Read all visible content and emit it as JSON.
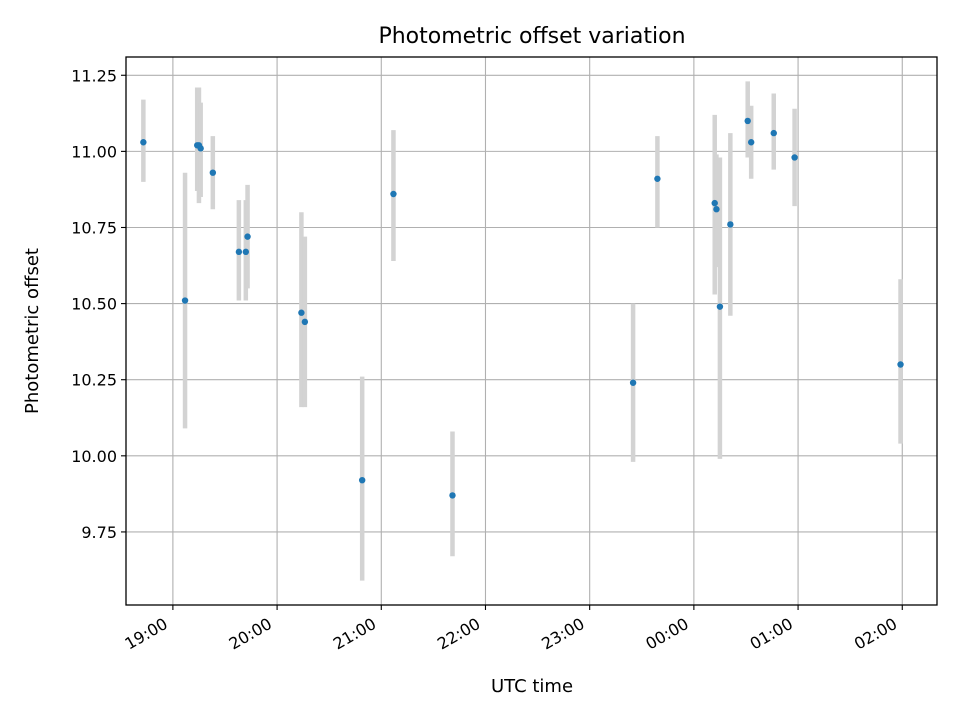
{
  "chart_data": {
    "type": "scatter",
    "title": "Photometric offset variation",
    "xlabel": "UTC time",
    "ylabel": "Photometric offset",
    "x_axis": {
      "type": "time",
      "xlim": [
        "18:33",
        "02:20"
      ],
      "ticks": [
        {
          "t": "19:00",
          "label": "19:00"
        },
        {
          "t": "20:00",
          "label": "20:00"
        },
        {
          "t": "21:00",
          "label": "21:00"
        },
        {
          "t": "22:00",
          "label": "22:00"
        },
        {
          "t": "23:00",
          "label": "23:00"
        },
        {
          "t": "00:00",
          "label": "00:00"
        },
        {
          "t": "01:00",
          "label": "01:00"
        },
        {
          "t": "02:00",
          "label": "02:00"
        }
      ]
    },
    "y_axis": {
      "ylim": [
        9.51,
        11.31
      ],
      "ticks": [
        9.75,
        10.0,
        10.25,
        10.5,
        10.75,
        11.0,
        11.25
      ],
      "tick_labels": [
        "9.75",
        "10.00",
        "10.25",
        "10.50",
        "10.75",
        "11.00",
        "11.25"
      ]
    },
    "grid": true,
    "colors": {
      "marker": "#1f77b4",
      "errorbar": "#d3d3d3",
      "grid": "#b0b0b0"
    },
    "points": [
      {
        "t": "18:43",
        "y": 11.03,
        "lo": 10.9,
        "hi": 11.17
      },
      {
        "t": "19:07",
        "y": 10.51,
        "lo": 10.09,
        "hi": 10.93
      },
      {
        "t": "19:14",
        "y": 11.02,
        "lo": 10.87,
        "hi": 11.21
      },
      {
        "t": "19:15",
        "y": 11.02,
        "lo": 10.83,
        "hi": 11.21
      },
      {
        "t": "19:16",
        "y": 11.01,
        "lo": 10.85,
        "hi": 11.16
      },
      {
        "t": "19:23",
        "y": 10.93,
        "lo": 10.81,
        "hi": 11.05
      },
      {
        "t": "19:38",
        "y": 10.67,
        "lo": 10.51,
        "hi": 10.84
      },
      {
        "t": "19:42",
        "y": 10.67,
        "lo": 10.51,
        "hi": 10.84
      },
      {
        "t": "19:43",
        "y": 10.72,
        "lo": 10.55,
        "hi": 10.89
      },
      {
        "t": "20:14",
        "y": 10.47,
        "lo": 10.16,
        "hi": 10.8
      },
      {
        "t": "20:16",
        "y": 10.44,
        "lo": 10.16,
        "hi": 10.72
      },
      {
        "t": "20:49",
        "y": 9.92,
        "lo": 9.59,
        "hi": 10.26
      },
      {
        "t": "21:07",
        "y": 10.86,
        "lo": 10.64,
        "hi": 11.07
      },
      {
        "t": "21:41",
        "y": 9.87,
        "lo": 9.67,
        "hi": 10.08
      },
      {
        "t": "23:25",
        "y": 10.24,
        "lo": 9.98,
        "hi": 10.5
      },
      {
        "t": "23:39",
        "y": 10.91,
        "lo": 10.75,
        "hi": 11.05
      },
      {
        "t": "00:12",
        "y": 10.83,
        "lo": 10.53,
        "hi": 11.12
      },
      {
        "t": "00:13",
        "y": 10.81,
        "lo": 10.62,
        "hi": 10.99
      },
      {
        "t": "00:15",
        "y": 10.49,
        "lo": 9.99,
        "hi": 10.98
      },
      {
        "t": "00:21",
        "y": 10.76,
        "lo": 10.46,
        "hi": 11.06
      },
      {
        "t": "00:31",
        "y": 11.1,
        "lo": 10.98,
        "hi": 11.23
      },
      {
        "t": "00:33",
        "y": 11.03,
        "lo": 10.91,
        "hi": 11.15
      },
      {
        "t": "00:46",
        "y": 11.06,
        "lo": 10.94,
        "hi": 11.19
      },
      {
        "t": "00:58",
        "y": 10.98,
        "lo": 10.82,
        "hi": 11.14
      },
      {
        "t": "01:59",
        "y": 10.3,
        "lo": 10.04,
        "hi": 10.58
      }
    ]
  }
}
